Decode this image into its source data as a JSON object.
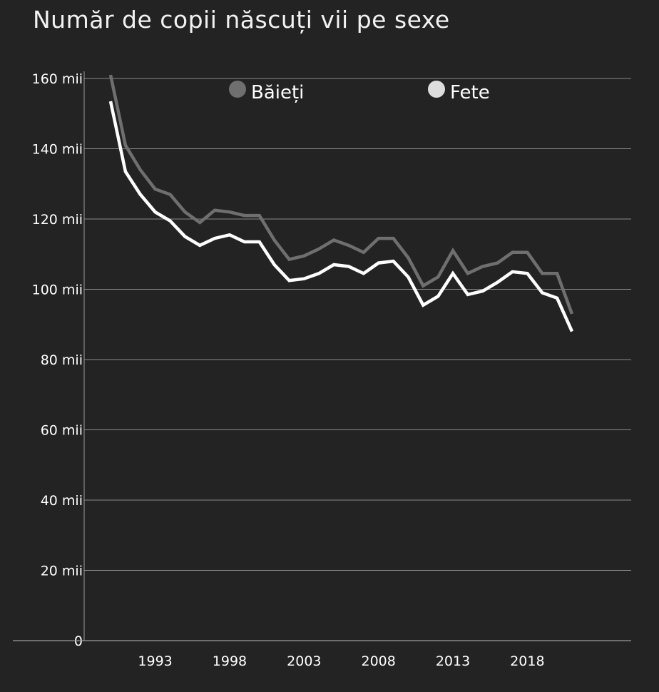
{
  "chart_data": {
    "type": "line",
    "title": "Număr de copii născuți vii pe sexe",
    "xlabel": "",
    "ylabel": "",
    "x": [
      1990,
      1991,
      1992,
      1993,
      1994,
      1995,
      1996,
      1997,
      1998,
      1999,
      2000,
      2001,
      2002,
      2003,
      2004,
      2005,
      2006,
      2007,
      2008,
      2009,
      2010,
      2011,
      2012,
      2013,
      2014,
      2015,
      2016,
      2017,
      2018,
      2019,
      2020,
      2021
    ],
    "xlim": [
      1987,
      2025
    ],
    "ylim": [
      0,
      162
    ],
    "x_ticks": [
      1993,
      1998,
      2003,
      2008,
      2013,
      2018
    ],
    "x_tick_labels": [
      "1993",
      "1998",
      "2003",
      "2008",
      "2013",
      "2018"
    ],
    "y_ticks": [
      0,
      20,
      40,
      60,
      80,
      100,
      120,
      140,
      160
    ],
    "y_tick_labels": [
      "0",
      "20 mii",
      "40 mii",
      "60 mii",
      "80 mii",
      "100 mii",
      "120 mii",
      "140 mii",
      "160 mii"
    ],
    "grid": true,
    "legend_position": "top",
    "series": [
      {
        "name": "Băieți",
        "color": "#6f6f6f",
        "values": [
          161,
          141,
          134,
          128.5,
          127,
          122,
          119,
          122.5,
          122,
          121,
          121,
          114,
          108.5,
          109.5,
          111.5,
          114,
          112.5,
          110.5,
          114.5,
          114.5,
          109,
          101,
          103.5,
          111,
          104.5,
          106.5,
          107.5,
          110.5,
          110.5,
          104.5,
          104.5,
          93
        ]
      },
      {
        "name": "Fete",
        "color": "#ffffff",
        "values": [
          153.5,
          133.5,
          127,
          122,
          119.5,
          115,
          112.5,
          114.5,
          115.5,
          113.5,
          113.5,
          107,
          102.5,
          103,
          104.5,
          107,
          106.5,
          104.5,
          107.5,
          108,
          103.5,
          95.5,
          98,
          104.5,
          98.5,
          99.5,
          102,
          105,
          104.5,
          99,
          97.5,
          88
        ]
      }
    ]
  }
}
